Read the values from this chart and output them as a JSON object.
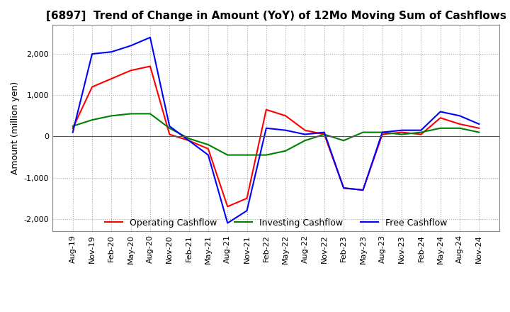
{
  "title": "[6897]  Trend of Change in Amount (YoY) of 12Mo Moving Sum of Cashflows",
  "ylabel": "Amount (million yen)",
  "ylim": [
    -2300,
    2700
  ],
  "yticks": [
    -2000,
    -1000,
    0,
    1000,
    2000
  ],
  "x_labels": [
    "Aug-19",
    "Nov-19",
    "Feb-20",
    "May-20",
    "Aug-20",
    "Nov-20",
    "Feb-21",
    "May-21",
    "Aug-21",
    "Nov-21",
    "Feb-22",
    "May-22",
    "Aug-22",
    "Nov-22",
    "Feb-23",
    "May-23",
    "Aug-23",
    "Nov-23",
    "Feb-24",
    "May-24",
    "Aug-24",
    "Nov-24"
  ],
  "operating": [
    200,
    1200,
    1400,
    1600,
    1700,
    50,
    -100,
    -300,
    -1700,
    -1500,
    650,
    500,
    150,
    50,
    -1250,
    -1300,
    50,
    100,
    50,
    450,
    300,
    200
  ],
  "investing": [
    250,
    400,
    500,
    550,
    550,
    200,
    -50,
    -200,
    -450,
    -450,
    -450,
    -350,
    -100,
    50,
    -100,
    100,
    100,
    50,
    100,
    200,
    200,
    100
  ],
  "free": [
    100,
    2000,
    2050,
    2200,
    2400,
    250,
    -100,
    -450,
    -2100,
    -1800,
    200,
    150,
    50,
    100,
    -1250,
    -1300,
    100,
    150,
    150,
    600,
    500,
    300
  ],
  "op_color": "#ff0000",
  "inv_color": "#008000",
  "free_color": "#0000ff",
  "bg_color": "#ffffff",
  "grid_color": "#aaaaaa",
  "title_fontsize": 11,
  "axis_fontsize": 9,
  "tick_fontsize": 8,
  "legend_fontsize": 9
}
